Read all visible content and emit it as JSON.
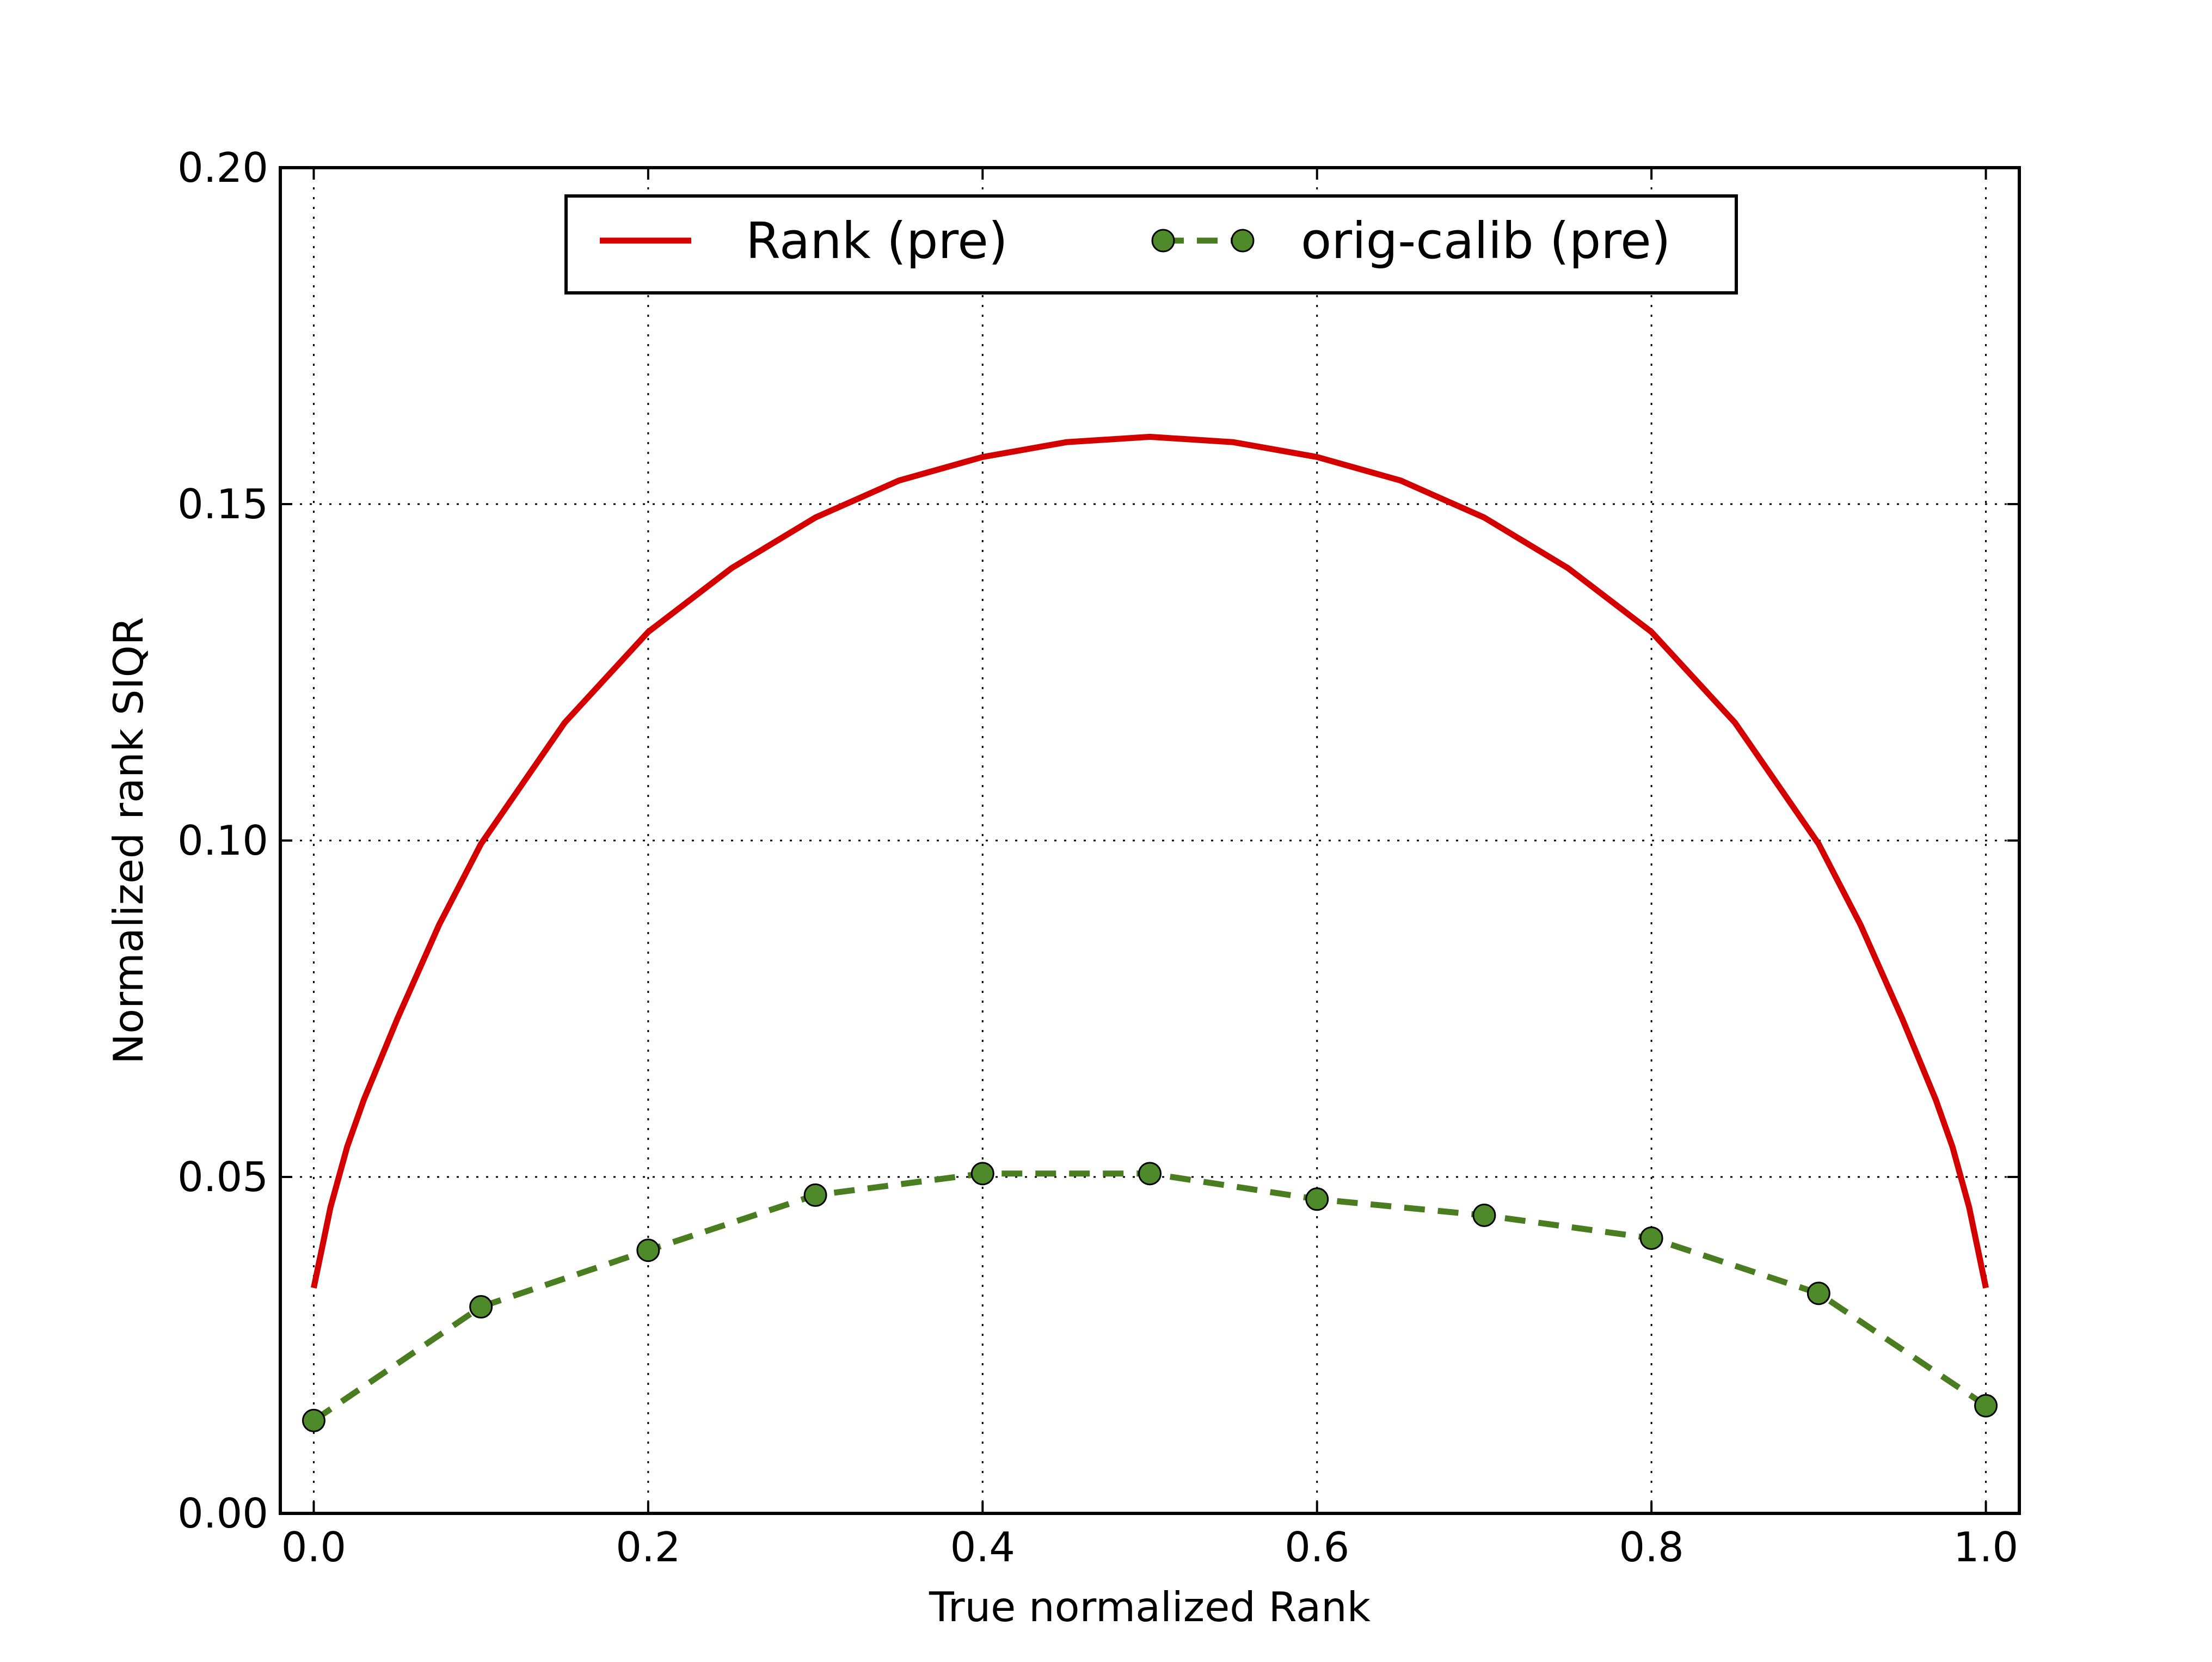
{
  "chart_data": {
    "type": "line",
    "title": "",
    "xlabel": "True normalized Rank",
    "ylabel": "Normalized rank SIQR",
    "xlim": [
      -0.02,
      1.02
    ],
    "ylim": [
      0.0,
      0.2
    ],
    "x_ticks": [
      0.0,
      0.2,
      0.4,
      0.6,
      0.8,
      1.0
    ],
    "x_tick_labels": [
      "0.0",
      "0.2",
      "0.4",
      "0.6",
      "0.8",
      "1.0"
    ],
    "y_ticks": [
      0.0,
      0.05,
      0.1,
      0.15,
      0.2
    ],
    "y_tick_labels": [
      "0.00",
      "0.05",
      "0.10",
      "0.15",
      "0.20"
    ],
    "grid": true,
    "legend_position": "top-center",
    "series": [
      {
        "name": "Rank (pre)",
        "style": "solid",
        "marker": "none",
        "color": "#d40000",
        "x": [
          0.0,
          0.005,
          0.01,
          0.02,
          0.03,
          0.05,
          0.075,
          0.1,
          0.15,
          0.2,
          0.25,
          0.3,
          0.35,
          0.4,
          0.45,
          0.5,
          0.55,
          0.6,
          0.65,
          0.7,
          0.75,
          0.8,
          0.85,
          0.9,
          0.925,
          0.95,
          0.97,
          0.98,
          0.99,
          0.995,
          1.0
        ],
        "y": [
          0.0335,
          0.0395,
          0.0455,
          0.0545,
          0.0615,
          0.0735,
          0.0875,
          0.0995,
          0.1175,
          0.131,
          0.1405,
          0.148,
          0.1535,
          0.157,
          0.1592,
          0.16,
          0.1592,
          0.157,
          0.1535,
          0.148,
          0.1405,
          0.131,
          0.1175,
          0.0995,
          0.0875,
          0.0735,
          0.0615,
          0.0545,
          0.0455,
          0.0395,
          0.0335
        ]
      },
      {
        "name": "orig-calib (pre)",
        "style": "dashed",
        "marker": "circle",
        "color": "#4a7d1f",
        "marker_color": "#4f8a2a",
        "x": [
          0.0,
          0.1,
          0.2,
          0.3,
          0.4,
          0.5,
          0.6,
          0.7,
          0.8,
          0.9,
          1.0
        ],
        "y": [
          0.0138,
          0.0307,
          0.0391,
          0.0473,
          0.0505,
          0.0505,
          0.0467,
          0.0443,
          0.0409,
          0.0327,
          0.016
        ]
      }
    ]
  }
}
